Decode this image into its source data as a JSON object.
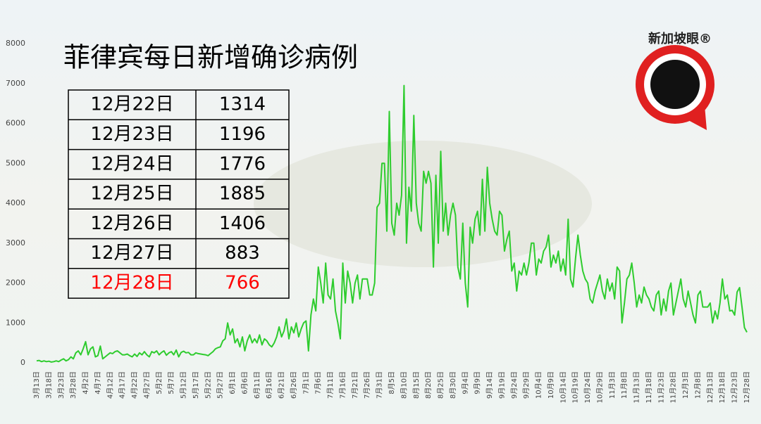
{
  "chart_data": {
    "type": "line",
    "title": "菲律宾每日新增确诊病例",
    "color": "#2ecc2e",
    "ylim": [
      0,
      8000
    ],
    "yticks": [
      0,
      1000,
      2000,
      3000,
      4000,
      5000,
      6000,
      7000,
      8000
    ],
    "grid": false,
    "categories": [
      "3月13日",
      null,
      null,
      null,
      null,
      "3月18日",
      null,
      null,
      null,
      null,
      "3月23日",
      null,
      null,
      null,
      null,
      "3月28日",
      null,
      null,
      null,
      null,
      "4月2日",
      null,
      null,
      null,
      null,
      "4月7日",
      null,
      null,
      null,
      null,
      "4月12日",
      null,
      null,
      null,
      null,
      "4月17日",
      null,
      null,
      null,
      null,
      "4月22日",
      null,
      null,
      null,
      null,
      "4月27日",
      null,
      null,
      null,
      null,
      "5月2日",
      null,
      null,
      null,
      null,
      "5月7日",
      null,
      null,
      null,
      null,
      "5月12日",
      null,
      null,
      null,
      null,
      "5月17日",
      null,
      null,
      null,
      null,
      "5月22日",
      null,
      null,
      null,
      null,
      "5月27日",
      null,
      null,
      null,
      null,
      "6月1日",
      null,
      null,
      null,
      null,
      "6月6日",
      null,
      null,
      null,
      null,
      "6月11日",
      null,
      null,
      null,
      null,
      "6月16日",
      null,
      null,
      null,
      null,
      "6月21日",
      null,
      null,
      null,
      null,
      "6月26日",
      null,
      null,
      null,
      null,
      "7月1日",
      null,
      null,
      null,
      null,
      "7月6日",
      null,
      null,
      null,
      null,
      "7月11日",
      null,
      null,
      null,
      null,
      "7月16日",
      null,
      null,
      null,
      null,
      "7月21日",
      null,
      null,
      null,
      null,
      "7月26日",
      null,
      null,
      null,
      null,
      "7月31日",
      null,
      null,
      null,
      null,
      "8月5日",
      null,
      null,
      null,
      null,
      "8月10日",
      null,
      null,
      null,
      null,
      "8月15日",
      null,
      null,
      null,
      null,
      "8月20日",
      null,
      null,
      null,
      null,
      "8月25日",
      null,
      null,
      null,
      null,
      "8月30日",
      null,
      null,
      null,
      null,
      "9月4日",
      null,
      null,
      null,
      null,
      "9月9日",
      null,
      null,
      null,
      null,
      "9月14日",
      null,
      null,
      null,
      null,
      "9月19日",
      null,
      null,
      null,
      null,
      "9月24日",
      null,
      null,
      null,
      null,
      "9月29日",
      null,
      null,
      null,
      null,
      "10月4日",
      null,
      null,
      null,
      null,
      "10月9日",
      null,
      null,
      null,
      null,
      "10月14日",
      null,
      null,
      null,
      null,
      "10月19日",
      null,
      null,
      null,
      null,
      "10月24日",
      null,
      null,
      null,
      null,
      "10月29日",
      null,
      null,
      null,
      null,
      "11月3日",
      null,
      null,
      null,
      null,
      "11月8日",
      null,
      null,
      null,
      null,
      "11月13日",
      null,
      null,
      null,
      null,
      "11月18日",
      null,
      null,
      null,
      null,
      "11月23日",
      null,
      null,
      null,
      null,
      "11月28日",
      null,
      null,
      null,
      null,
      "12月3日",
      null,
      null,
      null,
      null,
      "12月8日",
      null,
      null,
      null,
      null,
      "12月13日",
      null,
      null,
      null,
      null,
      "12月18日",
      null,
      null,
      null,
      null,
      "12月23日",
      null,
      null,
      null,
      null,
      "12月28日"
    ],
    "values": [
      50,
      60,
      30,
      50,
      30,
      40,
      20,
      30,
      50,
      30,
      70,
      100,
      50,
      80,
      150,
      100,
      250,
      300,
      200,
      350,
      530,
      200,
      350,
      400,
      150,
      180,
      420,
      100,
      150,
      200,
      250,
      230,
      280,
      300,
      250,
      200,
      200,
      220,
      180,
      150,
      220,
      160,
      250,
      200,
      280,
      200,
      150,
      280,
      250,
      300,
      200,
      260,
      300,
      190,
      250,
      280,
      200,
      320,
      150,
      260,
      290,
      250,
      260,
      200,
      200,
      250,
      230,
      220,
      210,
      200,
      180,
      230,
      280,
      350,
      380,
      400,
      550,
      600,
      1000,
      700,
      850,
      500,
      600,
      400,
      650,
      300,
      550,
      700,
      500,
      600,
      500,
      700,
      450,
      600,
      550,
      450,
      400,
      500,
      650,
      900,
      650,
      800,
      1100,
      600,
      900,
      750,
      1000,
      650,
      850,
      1000,
      1050,
      300,
      1200,
      1600,
      1300,
      2400,
      2000,
      1500,
      2500,
      1700,
      1600,
      2100,
      1300,
      1000,
      600,
      2500,
      1500,
      2300,
      2000,
      1500,
      2000,
      2200,
      1600,
      2100,
      2100,
      2100,
      1700,
      1700,
      2000,
      3900,
      4000,
      5000,
      5000,
      3300,
      6300,
      3500,
      3200,
      4000,
      3700,
      4200,
      6950,
      3000,
      4400,
      3800,
      6200,
      4000,
      3500,
      3300,
      4800,
      4500,
      4800,
      4500,
      2400,
      4700,
      3000,
      5300,
      3300,
      4000,
      3200,
      3700,
      4000,
      3700,
      2400,
      2100,
      3500,
      2000,
      1400,
      3400,
      3000,
      3600,
      3800,
      3200,
      4600,
      3300,
      4900,
      4000,
      3600,
      3300,
      3200,
      3800,
      3700,
      2800,
      3100,
      3300,
      2300,
      2500,
      1800,
      2300,
      2200,
      2500,
      2200,
      2500,
      3000,
      3000,
      2200,
      2600,
      2500,
      2800,
      2900,
      3200,
      2400,
      2700,
      2500,
      2800,
      2300,
      2600,
      2200,
      3600,
      2100,
      1900,
      2600,
      3200,
      2700,
      2300,
      2100,
      2000,
      1600,
      1500,
      1800,
      2000,
      2200,
      1800,
      1600,
      2100,
      1800,
      2000,
      1600,
      2400,
      2300,
      1000,
      1500,
      2100,
      2200,
      2500,
      2000,
      1400,
      1700,
      1500,
      1900,
      1700,
      1600,
      1400,
      1300,
      1700,
      1800,
      1200,
      1600,
      1300,
      1800,
      2000,
      1200,
      1500,
      1800,
      2100,
      1600,
      1400,
      1800,
      1500,
      1200,
      1000,
      1700,
      1800,
      1400,
      1400,
      1400,
      1500,
      1000,
      1300,
      1100,
      1500,
      2100,
      1600,
      1700,
      1300,
      1314,
      1196,
      1776,
      1885,
      1406,
      883,
      766
    ]
  },
  "table": {
    "rows": [
      {
        "date": "12月22日",
        "count": 1314,
        "color": "#000000"
      },
      {
        "date": "12月23日",
        "count": 1196,
        "color": "#000000"
      },
      {
        "date": "12月24日",
        "count": 1776,
        "color": "#000000"
      },
      {
        "date": "12月25日",
        "count": 1885,
        "color": "#000000"
      },
      {
        "date": "12月26日",
        "count": 1406,
        "color": "#000000"
      },
      {
        "date": "12月27日",
        "count": 883,
        "color": "#000000"
      },
      {
        "date": "12月28日",
        "count": 766,
        "color": "#ff0000"
      }
    ]
  },
  "logo": {
    "text": "新加坡眼®"
  }
}
